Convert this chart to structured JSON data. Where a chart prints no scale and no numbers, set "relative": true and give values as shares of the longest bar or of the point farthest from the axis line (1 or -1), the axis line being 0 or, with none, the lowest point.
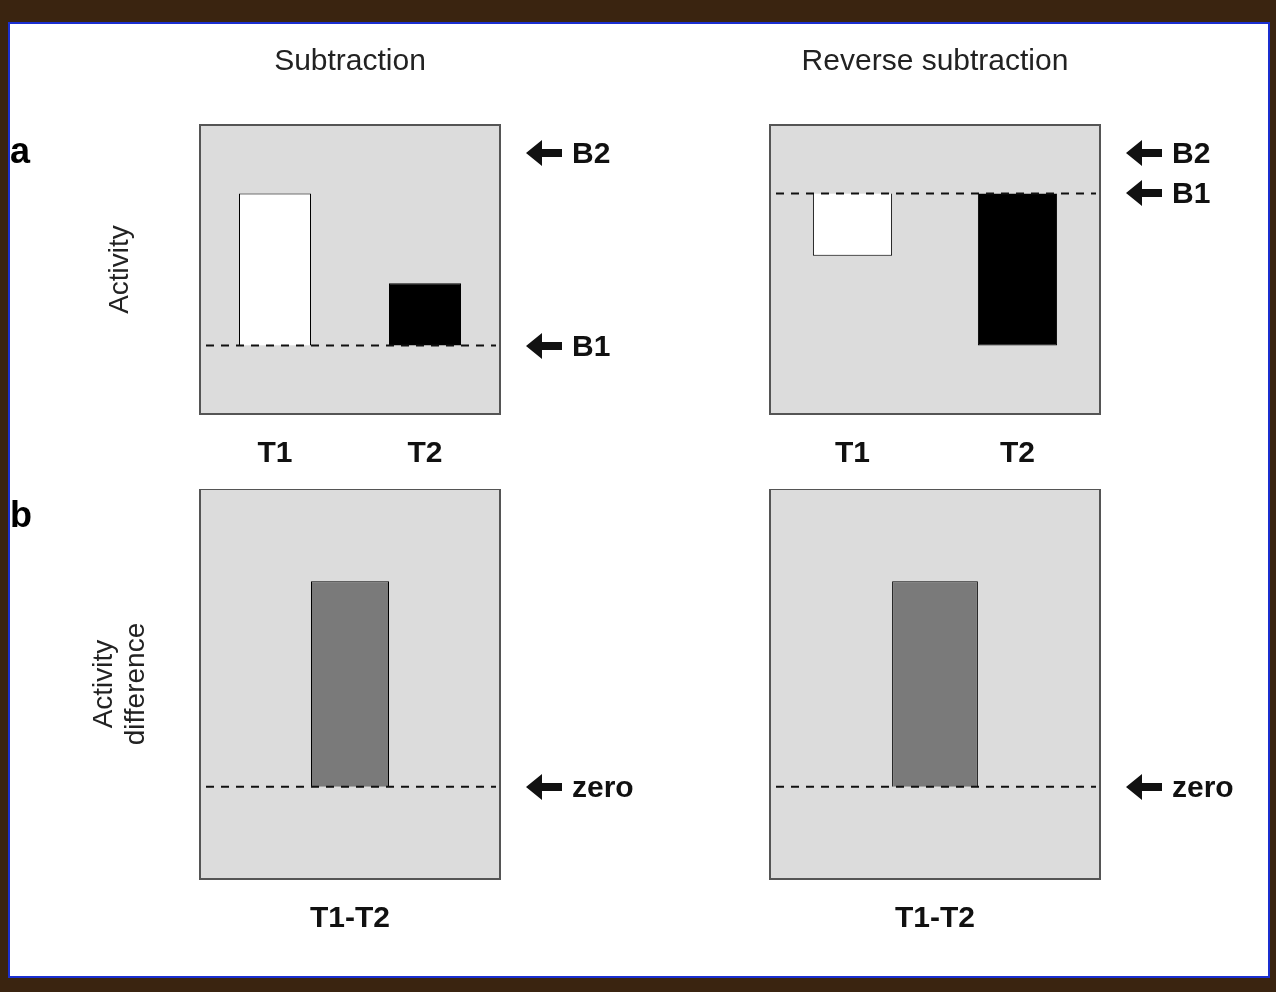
{
  "chart_data": [
    {
      "type": "bar",
      "title": "Subtraction",
      "ylabel": "Activity",
      "categories": [
        "T1",
        "T2"
      ],
      "values": [
        1,
        0.41
      ],
      "colors": [
        "#ffffff",
        "#000000"
      ],
      "relative": true,
      "grid": false,
      "legend": false,
      "annotations": [
        "a",
        "B2"
      ],
      "ref_lines": [
        {
          "axis": "y",
          "value": 0,
          "label": "B1",
          "line_style": "dashed"
        }
      ]
    },
    {
      "type": "bar",
      "title": "Reverse subtraction",
      "categories": [
        "T1",
        "T2"
      ],
      "values": [
        -0.41,
        -1
      ],
      "colors": [
        "#ffffff",
        "#000000"
      ],
      "relative": true,
      "grid": false,
      "legend": false,
      "annotations": [
        "B2"
      ],
      "ref_lines": [
        {
          "axis": "y",
          "value": 0,
          "label": "B1",
          "line_style": "dashed"
        }
      ]
    },
    {
      "type": "bar",
      "ylabel": "Activity difference",
      "categories": [
        "T1-T2"
      ],
      "values": [
        1
      ],
      "colors": [
        "#7a7a7a"
      ],
      "relative": true,
      "grid": false,
      "legend": false,
      "annotations": [
        "b"
      ],
      "ref_lines": [
        {
          "axis": "y",
          "value": 0,
          "label": "zero",
          "line_style": "dashed"
        }
      ]
    },
    {
      "type": "bar",
      "categories": [
        "T1-T2"
      ],
      "values": [
        1
      ],
      "colors": [
        "#7a7a7a"
      ],
      "relative": true,
      "grid": false,
      "legend": false,
      "ref_lines": [
        {
          "axis": "y",
          "value": 0,
          "label": "zero",
          "line_style": "dashed"
        }
      ]
    }
  ]
}
